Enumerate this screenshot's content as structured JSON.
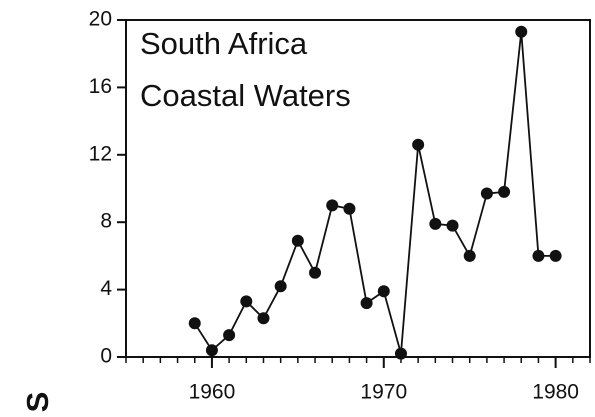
{
  "chart_data": {
    "type": "line",
    "annotation": [
      "South Africa",
      "Coastal Waters"
    ],
    "ylabel": "S",
    "x": [
      1959,
      1960,
      1961,
      1962,
      1963,
      1964,
      1965,
      1966,
      1967,
      1968,
      1969,
      1970,
      1971,
      1972,
      1973,
      1974,
      1975,
      1976,
      1977,
      1978,
      1979,
      1980
    ],
    "series": [
      {
        "color": "#111111",
        "values": [
          2.0,
          0.4,
          1.3,
          3.3,
          2.3,
          4.2,
          6.9,
          5.0,
          9.0,
          8.8,
          3.2,
          3.9,
          0.2,
          12.6,
          7.9,
          7.8,
          6.0,
          9.7,
          9.8,
          19.3,
          6.0,
          6.0
        ]
      }
    ],
    "xlim": [
      1955,
      1982
    ],
    "xticks": [
      1960,
      1970,
      1980
    ],
    "ylim": [
      0,
      20
    ],
    "yticks": [
      0,
      4,
      8,
      12,
      16,
      20
    ]
  }
}
